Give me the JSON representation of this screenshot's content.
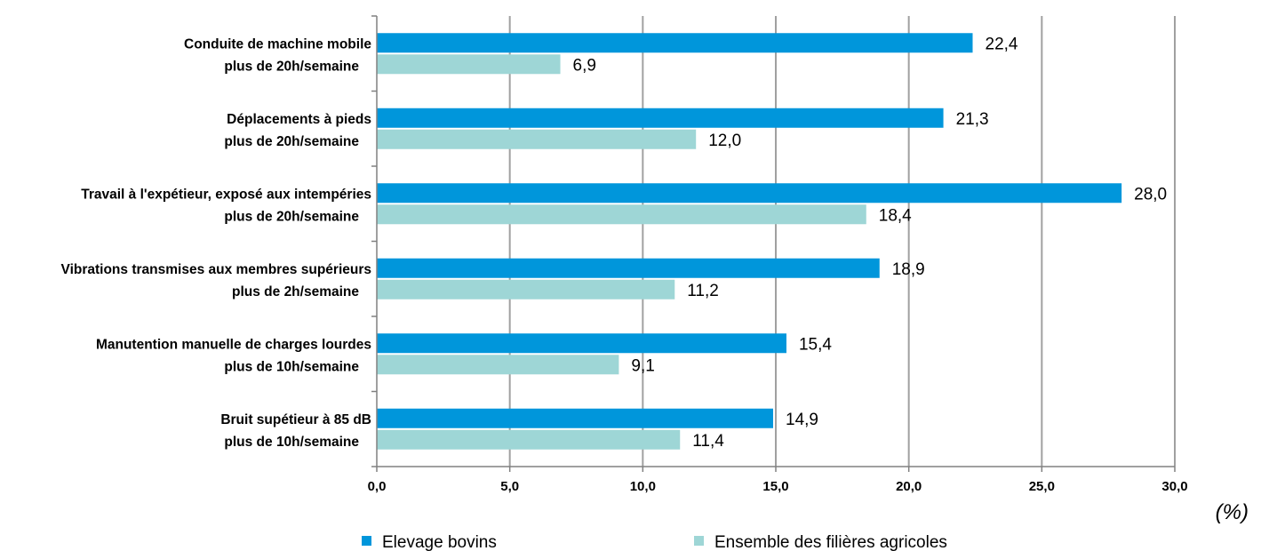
{
  "chart_data": {
    "type": "bar",
    "orientation": "horizontal",
    "categories": [
      [
        "Conduite de machine mobile",
        "plus de 20h/semaine"
      ],
      [
        "Déplacements à pieds",
        "plus de 20h/semaine"
      ],
      [
        "Travail à l'expétieur, exposé aux intempéries",
        "plus de 20h/semaine"
      ],
      [
        "Vibrations transmises aux membres supérieurs",
        "plus de 2h/semaine"
      ],
      [
        "Manutention manuelle de charges lourdes",
        "plus de 10h/semaine"
      ],
      [
        "Bruit supétieur à 85 dB",
        "plus de 10h/semaine"
      ]
    ],
    "series": [
      {
        "name": "Elevage bovins",
        "color": "#0096db",
        "values": [
          22.4,
          21.3,
          28.0,
          18.9,
          15.4,
          14.9
        ],
        "labels": [
          "22,4",
          "21,3",
          "28,0",
          "18,9",
          "15,4",
          "14,9"
        ]
      },
      {
        "name": "Ensemble des filières agricoles",
        "color": "#9ed6d6",
        "values": [
          6.9,
          12.0,
          18.4,
          11.2,
          9.1,
          11.4
        ],
        "labels": [
          "6,9",
          "12,0",
          "18,4",
          "11,2",
          "9,1",
          "11,4"
        ]
      }
    ],
    "xlim": [
      0,
      30
    ],
    "ticks": [
      0,
      5,
      10,
      15,
      20,
      25,
      30
    ],
    "tick_labels": [
      "0,0",
      "5,0",
      "10,0",
      "15,0",
      "20,0",
      "25,0",
      "30,0"
    ],
    "unit": "(%)",
    "grid": true,
    "legend_position": "bottom"
  }
}
